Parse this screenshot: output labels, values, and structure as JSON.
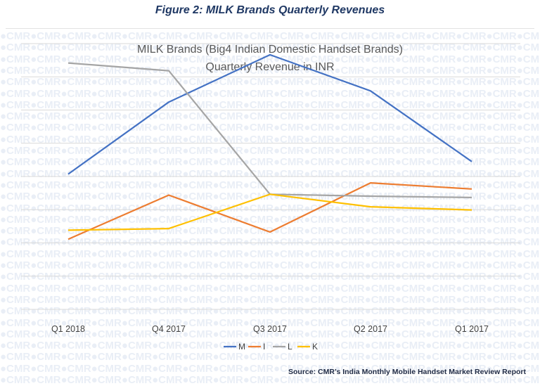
{
  "figure_caption": "Figure 2: MILK Brands Quarterly Revenues",
  "watermark_text": "●CMR",
  "source": "Source: CMR’s India Monthly Mobile Handset Market Review Report",
  "colors": {
    "M": "#4472c4",
    "I": "#ed7d31",
    "L": "#a5a5a5",
    "K": "#ffc000",
    "title": "#595959",
    "caption": "#1f3864"
  },
  "chart_data": {
    "type": "line",
    "title": "MILK Brands (Big4 Indian Domestic Handset Brands)",
    "subtitle": "Quarterly Revenue in INR",
    "xlabel": "",
    "ylabel": "",
    "categories": [
      "Q1 2018",
      "Q4 2017",
      "Q3 2017",
      "Q2 2017",
      "Q1 2017"
    ],
    "ylim": [
      0,
      100
    ],
    "grid": true,
    "legend": "bottom",
    "series": [
      {
        "name": "M",
        "values": [
          50.9,
          78.0,
          95.8,
          82.2,
          55.6
        ]
      },
      {
        "name": "I",
        "values": [
          26.4,
          43.0,
          29.1,
          47.6,
          45.3
        ]
      },
      {
        "name": "L",
        "values": [
          92.7,
          89.8,
          43.3,
          42.6,
          42.1
        ]
      },
      {
        "name": "K",
        "values": [
          29.8,
          30.4,
          43.3,
          38.6,
          37.4
        ]
      }
    ]
  }
}
